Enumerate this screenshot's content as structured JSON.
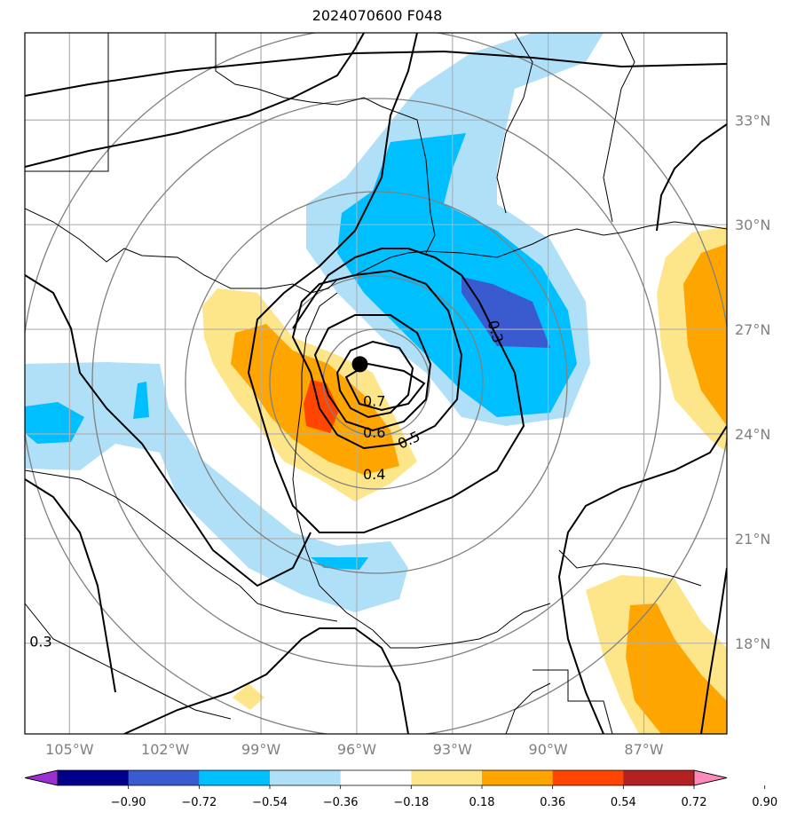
{
  "title": "2024070600 F048",
  "map": {
    "lon_range": [
      -106.4,
      -84.4
    ],
    "lat_range": [
      15.4,
      35.5
    ],
    "lon_ticks": [
      {
        "lon": -105,
        "label": "105°W"
      },
      {
        "lon": -102,
        "label": "102°W"
      },
      {
        "lon": -99,
        "label": "99°W"
      },
      {
        "lon": -96,
        "label": "96°W"
      },
      {
        "lon": -93,
        "label": "93°W"
      },
      {
        "lon": -90,
        "label": "90°W"
      },
      {
        "lon": -87,
        "label": "87°W"
      }
    ],
    "lat_ticks": [
      {
        "lat": 33,
        "label": "33°N"
      },
      {
        "lat": 30,
        "label": "30°N"
      },
      {
        "lat": 27,
        "label": "27°N"
      },
      {
        "lat": 24,
        "label": "24°N"
      },
      {
        "lat": 21,
        "label": "21°N"
      },
      {
        "lat": 18,
        "label": "18°N"
      }
    ],
    "grid": true,
    "center_marker": {
      "lon": -95.9,
      "lat": 26.0
    },
    "contour_labels": [
      {
        "text": "0.7",
        "lon": -95.45,
        "lat": 24.8
      },
      {
        "text": "0.6",
        "lon": -95.45,
        "lat": 23.9
      },
      {
        "text": "0.5",
        "lon": -94.3,
        "lat": 23.7
      },
      {
        "text": "0.4",
        "lon": -95.45,
        "lat": 22.7
      },
      {
        "text": "0.3",
        "lon": -91.8,
        "lat": 26.9
      },
      {
        "text": "0.3",
        "lon": -105.9,
        "lat": 17.9
      }
    ]
  },
  "colorbar": {
    "levels": [
      -0.9,
      -0.72,
      -0.54,
      -0.36,
      -0.18,
      0.18,
      0.36,
      0.54,
      0.72,
      0.9
    ],
    "labels": [
      "−0.90",
      "−0.72",
      "−0.54",
      "−0.36",
      "−0.18",
      "0.18",
      "0.36",
      "0.54",
      "0.72",
      "0.90"
    ],
    "colors": [
      "#9b30d0",
      "#00008b",
      "#3a5bd0",
      "#00bfff",
      "#b0e0f8",
      "#ffffff",
      "#fde68a",
      "#ffa500",
      "#ff4500",
      "#b22222",
      "#ff88bb"
    ]
  }
}
